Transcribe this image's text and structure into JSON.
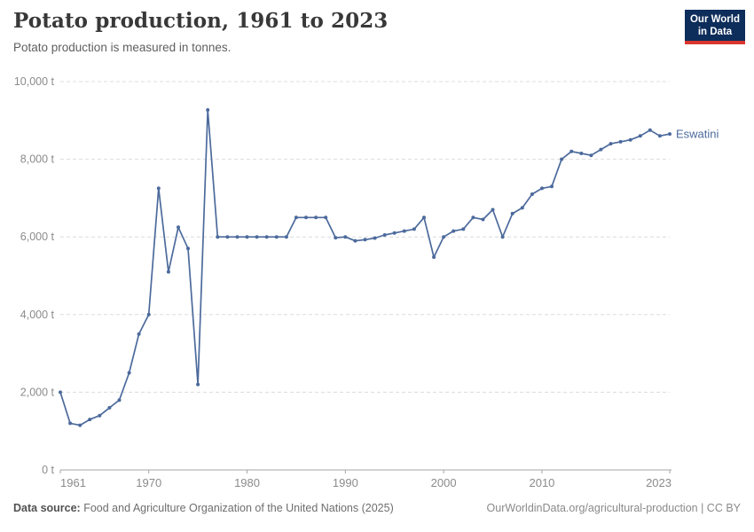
{
  "header": {
    "title": "Potato production, 1961 to 2023",
    "subtitle": "Potato production is measured in tonnes."
  },
  "logo": {
    "line1": "Our World",
    "line2": "in Data"
  },
  "chart_data": {
    "type": "line",
    "title": "Potato production, 1961 to 2023",
    "xlabel": "",
    "ylabel": "tonnes",
    "xlim": [
      1961,
      2023
    ],
    "ylim": [
      0,
      10000
    ],
    "grid": "horizontal-dashed",
    "legend_position": "end-of-line-label",
    "x_ticks": [
      1961,
      1970,
      1980,
      1990,
      2000,
      2010,
      2023
    ],
    "y_ticks": [
      0,
      2000,
      4000,
      6000,
      8000,
      10000
    ],
    "y_tick_labels": [
      "0 t",
      "2,000 t",
      "4,000 t",
      "6,000 t",
      "8,000 t",
      "10,000 t"
    ],
    "series": [
      {
        "name": "Eswatini",
        "color": "#4C6A9C",
        "x": [
          1961,
          1962,
          1963,
          1964,
          1965,
          1966,
          1967,
          1968,
          1969,
          1970,
          1971,
          1972,
          1973,
          1974,
          1975,
          1976,
          1977,
          1978,
          1979,
          1980,
          1981,
          1982,
          1983,
          1984,
          1985,
          1986,
          1987,
          1988,
          1989,
          1990,
          1991,
          1992,
          1993,
          1994,
          1995,
          1996,
          1997,
          1998,
          1999,
          2000,
          2001,
          2002,
          2003,
          2004,
          2005,
          2006,
          2007,
          2008,
          2009,
          2010,
          2011,
          2012,
          2013,
          2014,
          2015,
          2016,
          2017,
          2018,
          2019,
          2020,
          2021,
          2022,
          2023
        ],
        "values": [
          2000,
          1200,
          1150,
          1300,
          1400,
          1600,
          1800,
          2500,
          3500,
          4000,
          7250,
          5100,
          6250,
          5700,
          2200,
          9270,
          6000,
          6000,
          6000,
          6000,
          6000,
          6000,
          6000,
          6000,
          6500,
          6500,
          6500,
          6500,
          5980,
          6000,
          5900,
          5930,
          5970,
          6050,
          6100,
          6150,
          6200,
          6500,
          5480,
          6000,
          6150,
          6200,
          6500,
          6450,
          6700,
          6000,
          6600,
          6750,
          7100,
          7250,
          7300,
          8000,
          8200,
          8150,
          8100,
          8250,
          8400,
          8450,
          8500,
          8600,
          8750,
          8600,
          8650
        ]
      }
    ]
  },
  "footer": {
    "source_label": "Data source:",
    "source_text": "Food and Agriculture Organization of the United Nations (2025)",
    "link_text": "OurWorldinData.org/agricultural-production | CC BY"
  },
  "colors": {
    "line": "#4C6A9C",
    "grid": "#dcdcdc",
    "axis": "#a5a5a5",
    "tick_text": "#8b8b8b",
    "logo_bg": "#0d2d5a",
    "logo_red": "#d9362e"
  }
}
